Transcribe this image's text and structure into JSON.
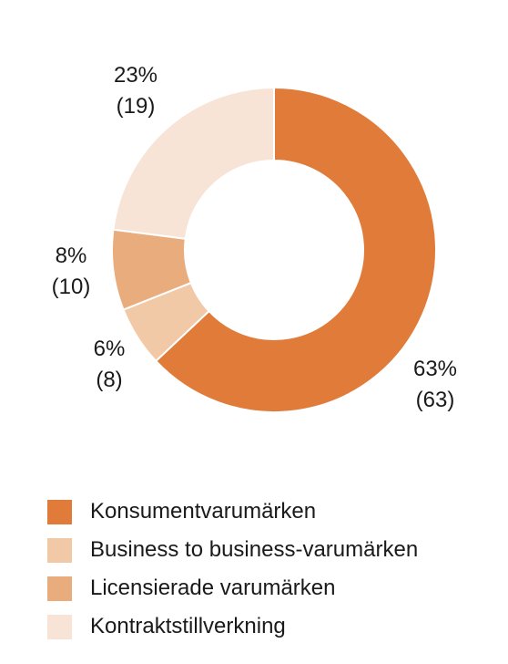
{
  "chart_data": {
    "type": "pie",
    "donut": true,
    "title": "",
    "legend_position": "bottom",
    "slices": [
      {
        "name": "Konsumentvarumärken",
        "value": 63,
        "percent_label": "63%",
        "prior_label": "(63)",
        "color": "#e07b39"
      },
      {
        "name": "Business to business-varumärken",
        "value": 6,
        "percent_label": "6%",
        "prior_label": "(8)",
        "color": "#f2c9a6"
      },
      {
        "name": "Licensierade varumärken",
        "value": 8,
        "percent_label": "8%",
        "prior_label": "(10)",
        "color": "#e9ac7d"
      },
      {
        "name": "Kontraktstillverkning",
        "value": 23,
        "percent_label": "23%",
        "prior_label": "(19)",
        "color": "#f8e4d6"
      }
    ]
  }
}
